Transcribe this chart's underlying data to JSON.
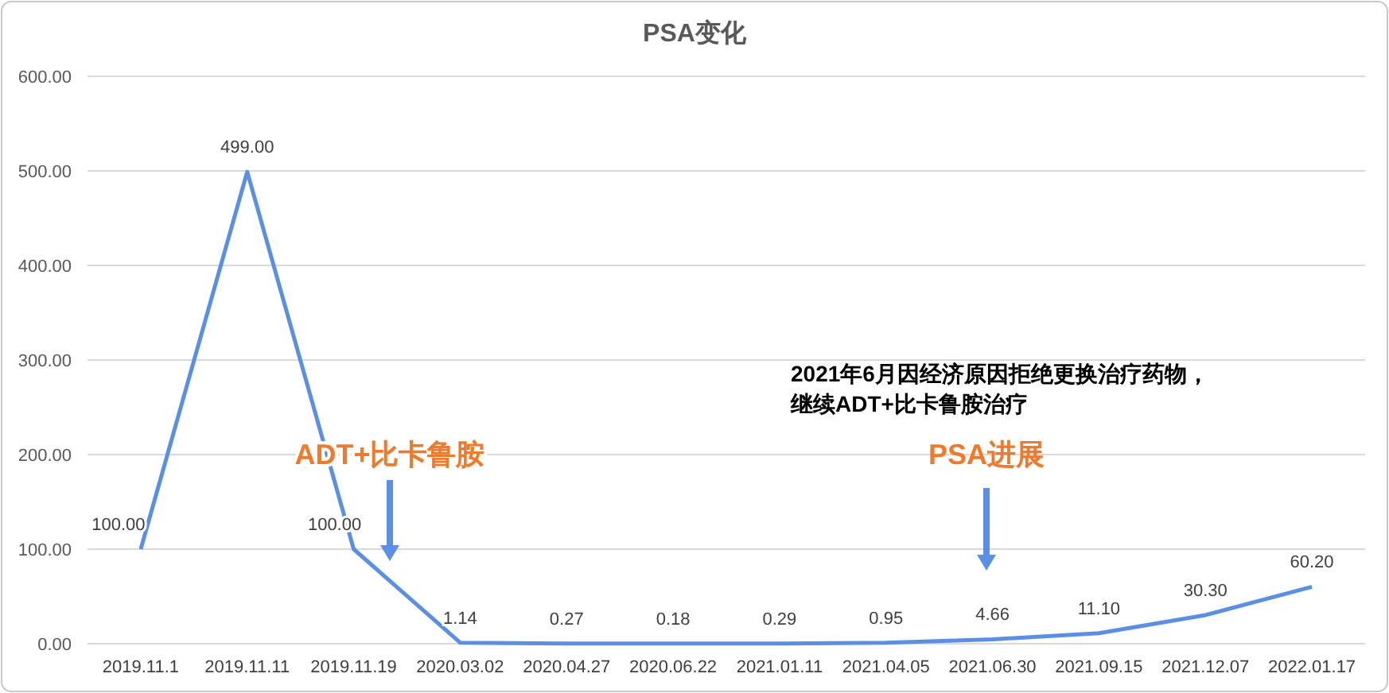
{
  "chart_data": {
    "type": "line",
    "title": "PSA变化",
    "categories": [
      "2019.11.1",
      "2019.11.11",
      "2019.11.19",
      "2020.03.02",
      "2020.04.27",
      "2020.06.22",
      "2021.01.11",
      "2021.04.05",
      "2021.06.30",
      "2021.09.15",
      "2021.12.07",
      "2022.01.17"
    ],
    "series": [
      {
        "color": "#5b8fe3",
        "values": [
          100,
          499,
          100,
          1.14,
          0.27,
          0.18,
          0.29,
          0.95,
          4.66,
          11.1,
          30.3,
          60.2
        ],
        "value_labels": [
          "100.00",
          "499.00",
          "100.00",
          "1.14",
          "0.27",
          "0.18",
          "0.29",
          "0.95",
          "4.66",
          "11.10",
          "30.30",
          "60.20"
        ]
      }
    ],
    "ylim": [
      0,
      600
    ],
    "yticks": [
      {
        "value": 0,
        "label": "0.00"
      },
      {
        "value": 100,
        "label": "100.00"
      },
      {
        "value": 200,
        "label": "200.00"
      },
      {
        "value": 300,
        "label": "300.00"
      },
      {
        "value": 400,
        "label": "400.00"
      },
      {
        "value": 500,
        "label": "500.00"
      },
      {
        "value": 600,
        "label": "600.00"
      }
    ],
    "grid": "y",
    "marker": "none",
    "line_style": "solid",
    "annotations": [
      "ADT+比卡鲁胺",
      "PSA进展",
      "2021年6月因经济原因拒绝更换治疗药物，",
      "继续ADT+比卡鲁胺治疗"
    ]
  }
}
